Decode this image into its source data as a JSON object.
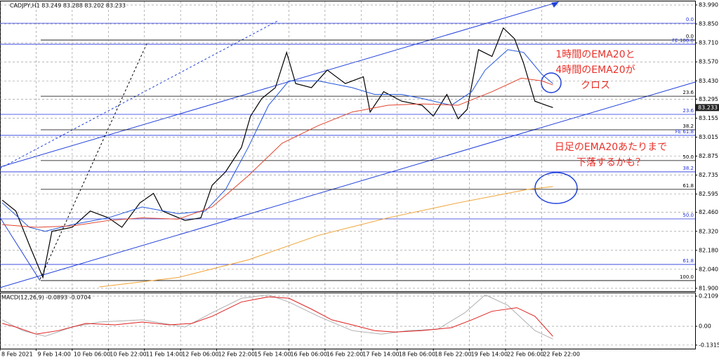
{
  "chart_data": [
    {
      "type": "line",
      "title": "CADJPY,H1  83.249 83.288 83.202 83.233",
      "xlim": [
        0,
        308
      ],
      "ylim": [
        81.879,
        84.016
      ],
      "yticks": [
        {
          "value": 83.99,
          "label": "83.990"
        },
        {
          "value": 83.85,
          "label": "83.850"
        },
        {
          "value": 83.71,
          "label": "83.710"
        },
        {
          "value": 83.57,
          "label": "83.570"
        },
        {
          "value": 83.43,
          "label": "83.430"
        },
        83.295,
        83.155,
        83.015,
        82.875,
        82.735,
        82.595,
        {
          "value": 82.46,
          "label": "82.460"
        },
        {
          "value": 82.32,
          "label": "82.320"
        },
        {
          "value": 82.18,
          "label": "82.180"
        },
        {
          "value": 82.04,
          "label": "82.040"
        },
        {
          "value": 81.9,
          "label": "81.900"
        }
      ],
      "grid": true,
      "series": [
        {
          "color": "#000000",
          "x": [
            1,
            7,
            13,
            19,
            23,
            32,
            40,
            48,
            54,
            62,
            68,
            72,
            82,
            89,
            94,
            100,
            107,
            111,
            116,
            122,
            127,
            131,
            138,
            145,
            153,
            161,
            164,
            170,
            178,
            187,
            192,
            198,
            203,
            207,
            212,
            218,
            223,
            228,
            232,
            237,
            242,
            245
          ],
          "values": [
            82.55,
            82.47,
            82.22,
            81.98,
            82.32,
            82.35,
            82.47,
            82.42,
            82.35,
            82.53,
            82.6,
            82.47,
            82.4,
            82.42,
            82.66,
            82.76,
            82.94,
            83.17,
            83.3,
            83.38,
            83.64,
            83.41,
            83.38,
            83.51,
            83.41,
            83.46,
            83.2,
            83.35,
            83.28,
            83.25,
            83.17,
            83.33,
            83.15,
            83.22,
            83.66,
            83.61,
            83.82,
            83.74,
            83.56,
            83.28,
            83.25,
            83.233
          ]
        },
        {
          "color": "#2255dd",
          "x": [
            1,
            13,
            20,
            32,
            48,
            63,
            79,
            91,
            100,
            110,
            119,
            128,
            141,
            156,
            166,
            178,
            187,
            200,
            209,
            215,
            225,
            232,
            240,
            245
          ],
          "values": [
            82.53,
            82.35,
            82.32,
            82.37,
            82.42,
            82.5,
            82.45,
            82.47,
            82.63,
            82.94,
            83.25,
            83.43,
            83.43,
            83.38,
            83.33,
            83.33,
            83.3,
            83.25,
            83.35,
            83.51,
            83.66,
            83.64,
            83.48,
            83.41
          ]
        },
        {
          "color": "#e0442c",
          "x": [
            1,
            16,
            32,
            48,
            63,
            79,
            94,
            110,
            125,
            141,
            156,
            172,
            187,
            203,
            218,
            231,
            240,
            245
          ],
          "values": [
            82.37,
            82.35,
            82.36,
            82.4,
            82.42,
            82.41,
            82.5,
            82.73,
            82.97,
            83.1,
            83.2,
            83.25,
            83.26,
            83.25,
            83.35,
            83.45,
            83.43,
            83.4
          ]
        },
        {
          "color": "#f0a030",
          "x": [
            44,
            79,
            110,
            141,
            172,
            203,
            234,
            245
          ],
          "values": [
            81.91,
            81.98,
            82.11,
            82.29,
            82.42,
            82.53,
            82.63,
            82.65
          ]
        }
      ],
      "levels": [
        {
          "label": "0.0",
          "value": 83.855,
          "color": "#2233dd"
        },
        {
          "label": "0.0",
          "value": 83.731,
          "color": "#000000"
        },
        {
          "label": "FE 100.0",
          "value": 83.7,
          "color": "#2233dd"
        },
        {
          "label": "23.6",
          "value": 83.317,
          "color": "#000000"
        },
        {
          "label": "23.6",
          "value": 83.183,
          "color": "#2233dd"
        },
        {
          "label": "38.2",
          "value": 83.069,
          "color": "#000000"
        },
        {
          "label": "FE 61.8",
          "value": 83.028,
          "color": "#2233dd"
        },
        {
          "label": "50.0",
          "value": 82.842,
          "color": "#000000"
        },
        {
          "label": "38.2",
          "value": 82.759,
          "color": "#2233dd"
        },
        {
          "label": "61.8",
          "value": 82.63,
          "color": "#000000"
        },
        {
          "label": "50.0",
          "value": 82.412,
          "color": "#2233dd"
        },
        {
          "label": "61.8",
          "value": 82.076,
          "color": "#2233dd"
        },
        {
          "label": "100.0",
          "value": 81.957,
          "color": "#000000"
        }
      ],
      "annotations": [
        {
          "lines": [
            "1時間のEMA20と",
            "4時間のEMA20が",
            "クロス"
          ],
          "color": "#e8312a"
        },
        {
          "lines": [
            "日足のEMA20あたりまで",
            "下落するかも？"
          ],
          "color": "#e8312a"
        }
      ]
    },
    {
      "type": "line",
      "title": "MACD(12,26,9) -0.0893 -0.0704",
      "xlim": [
        0,
        308
      ],
      "ylim": [
        -0.1566,
        0.231
      ],
      "yticks": [
        0.2109,
        {
          "value": 0,
          "label": "0.00"
        },
        -0.1315
      ],
      "xticks": [
        {
          "value": 0,
          "label": "8 Feb 2021"
        },
        {
          "value": 16,
          "label": "9 Feb 14:00"
        },
        {
          "value": 32,
          "label": "10 Feb 06:00"
        },
        {
          "value": 48,
          "label": "10 Feb 22:00"
        },
        {
          "value": 64,
          "label": "11 Feb 14:00"
        },
        {
          "value": 80,
          "label": "12 Feb 06:00"
        },
        {
          "value": 96,
          "label": "12 Feb 22:00"
        },
        {
          "value": 112,
          "label": "15 Feb 14:00"
        },
        {
          "value": 128,
          "label": "16 Feb 06:00"
        },
        {
          "value": 144,
          "label": "16 Feb 22:00"
        },
        {
          "value": 160,
          "label": "17 Feb 14:00"
        },
        {
          "value": 176,
          "label": "18 Feb 06:00"
        },
        {
          "value": 192,
          "label": "18 Feb 22:00"
        },
        {
          "value": 208,
          "label": "19 Feb 14:00"
        },
        {
          "value": 224,
          "label": "22 Feb 06:00"
        },
        {
          "value": 240,
          "label": "22 Feb 22:00"
        }
      ],
      "grid": true,
      "series": [
        {
          "color": "#b0b0b0",
          "x": [
            1,
            10,
            20,
            32,
            44,
            63,
            82,
            94,
            107,
            119,
            128,
            141,
            156,
            169,
            181,
            194,
            206,
            215,
            225,
            237,
            245
          ],
          "values": [
            0.045,
            -0.03,
            -0.07,
            -0.005,
            0.03,
            0.045,
            -0.005,
            0.095,
            0.196,
            0.22,
            0.17,
            0.07,
            -0.03,
            -0.055,
            -0.03,
            -0.02,
            0.095,
            0.22,
            0.146,
            -0.03,
            -0.0893
          ]
        },
        {
          "color": "#e02020",
          "x": [
            1,
            7,
            16,
            26,
            38,
            51,
            63,
            75,
            85,
            94,
            107,
            119,
            128,
            138,
            147,
            156,
            166,
            175,
            187,
            200,
            209,
            218,
            229,
            237,
            245
          ],
          "values": [
            0.02,
            -0.005,
            -0.055,
            -0.03,
            0.02,
            0.01,
            0.03,
            0.01,
            0.02,
            0.07,
            0.17,
            0.206,
            0.196,
            0.12,
            0.045,
            0.01,
            -0.03,
            -0.04,
            -0.03,
            -0.01,
            0.045,
            0.105,
            0.13,
            0.07,
            -0.0704
          ]
        }
      ]
    }
  ]
}
